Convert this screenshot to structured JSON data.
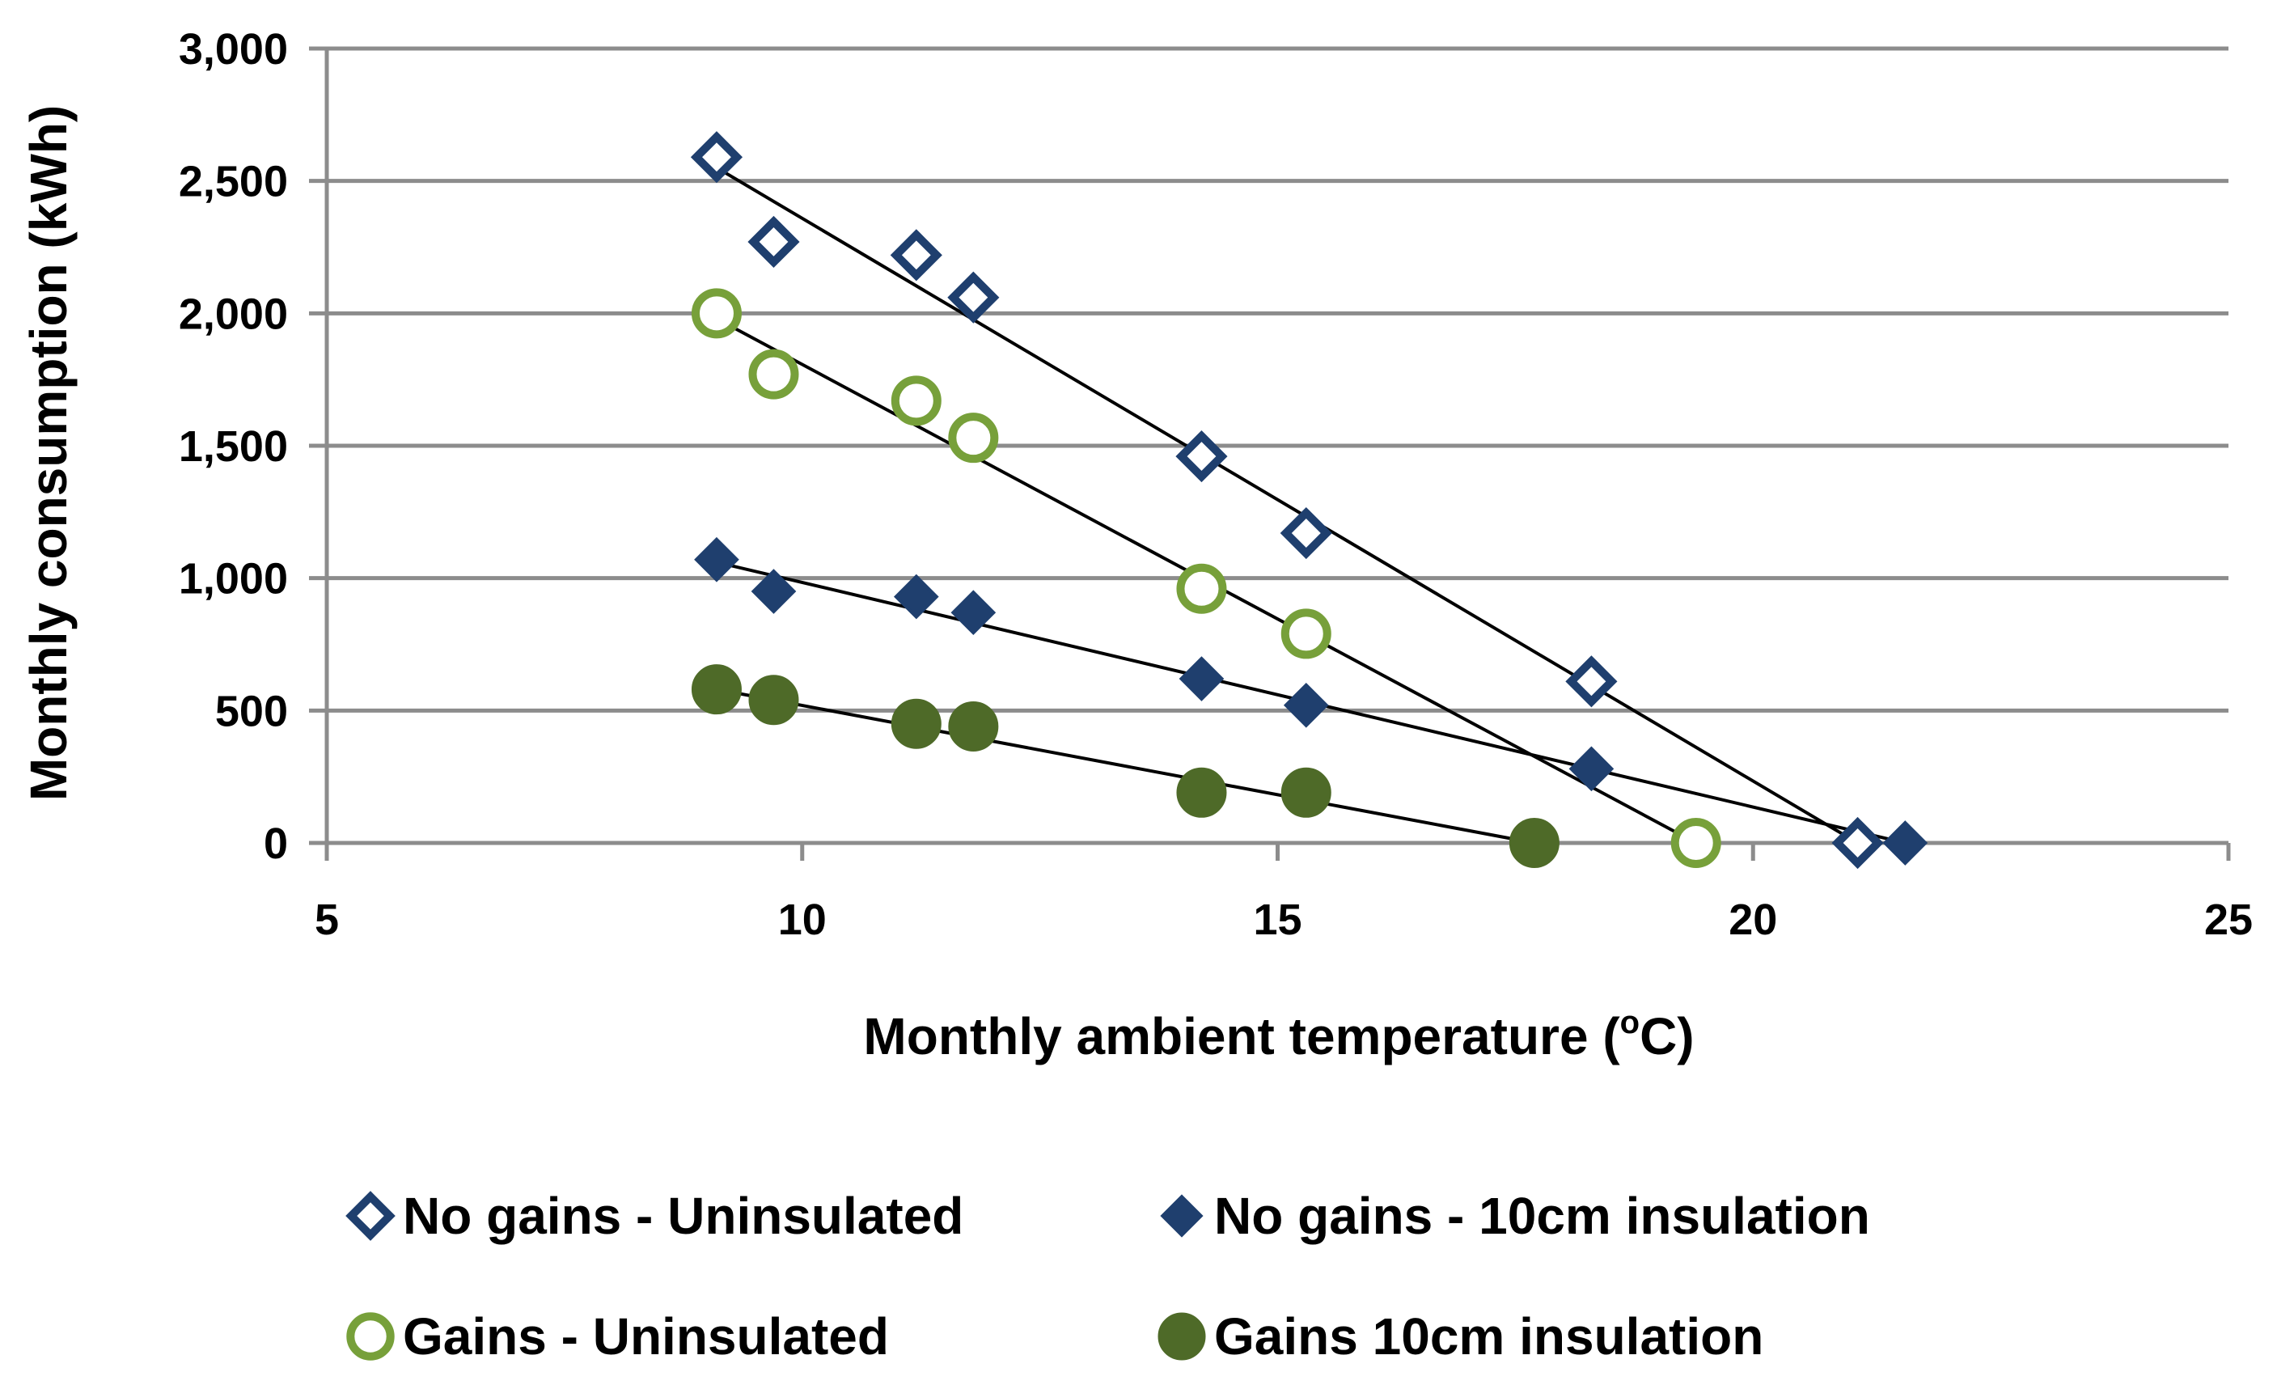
{
  "chart_data": {
    "type": "scatter",
    "title": "",
    "xlabel": "Monthly ambient temperature (",
    "xlabel_sup": "o",
    "xlabel_end": "C)",
    "ylabel": "Monthly consumption (kWh)",
    "xlim": [
      5,
      25
    ],
    "ylim": [
      0,
      3000
    ],
    "x_ticks": [
      5,
      10,
      15,
      20,
      25
    ],
    "x_tick_labels": [
      "5",
      "10",
      "15",
      "20",
      "25"
    ],
    "y_ticks": [
      0,
      500,
      1000,
      1500,
      2000,
      2500,
      3000
    ],
    "y_tick_labels": [
      "0",
      "500",
      "1,000",
      "1,500",
      "2,000",
      "2,500",
      "3,000"
    ],
    "grid": "horizontal",
    "legend_position": "bottom",
    "series": [
      {
        "name": "No gains - Uninsulated",
        "marker": "diamond-open",
        "color": "#1f3f6e",
        "x": [
          9.1,
          9.7,
          11.2,
          11.8,
          14.2,
          15.3,
          18.3,
          21.1
        ],
        "y": [
          2590,
          2270,
          2220,
          2060,
          1460,
          1170,
          610,
          0
        ],
        "trend": [
          [
            9.1,
            2550
          ],
          [
            21.1,
            0
          ]
        ]
      },
      {
        "name": "No gains - 10cm insulation",
        "marker": "diamond-filled",
        "color": "#1f3f6e",
        "x": [
          9.1,
          9.7,
          11.2,
          11.8,
          14.2,
          15.3,
          18.3,
          21.6
        ],
        "y": [
          1070,
          950,
          930,
          870,
          620,
          520,
          280,
          0
        ],
        "trend": [
          [
            9.1,
            1060
          ],
          [
            21.6,
            0
          ]
        ]
      },
      {
        "name": "Gains - Uninsulated",
        "marker": "circle-open",
        "color": "#77a03a",
        "x": [
          9.1,
          9.7,
          11.2,
          11.8,
          14.2,
          15.3,
          19.4
        ],
        "y": [
          2000,
          1770,
          1670,
          1530,
          960,
          790,
          0
        ],
        "trend": [
          [
            9.1,
            1980
          ],
          [
            19.4,
            0
          ]
        ]
      },
      {
        "name": "Gains 10cm insulation",
        "marker": "circle-filled",
        "color": "#4e6a28",
        "x": [
          9.1,
          9.7,
          11.2,
          11.8,
          14.2,
          15.3,
          17.7
        ],
        "y": [
          580,
          540,
          450,
          440,
          190,
          190,
          0
        ],
        "trend": [
          [
            9.1,
            580
          ],
          [
            17.7,
            0
          ]
        ]
      }
    ]
  }
}
